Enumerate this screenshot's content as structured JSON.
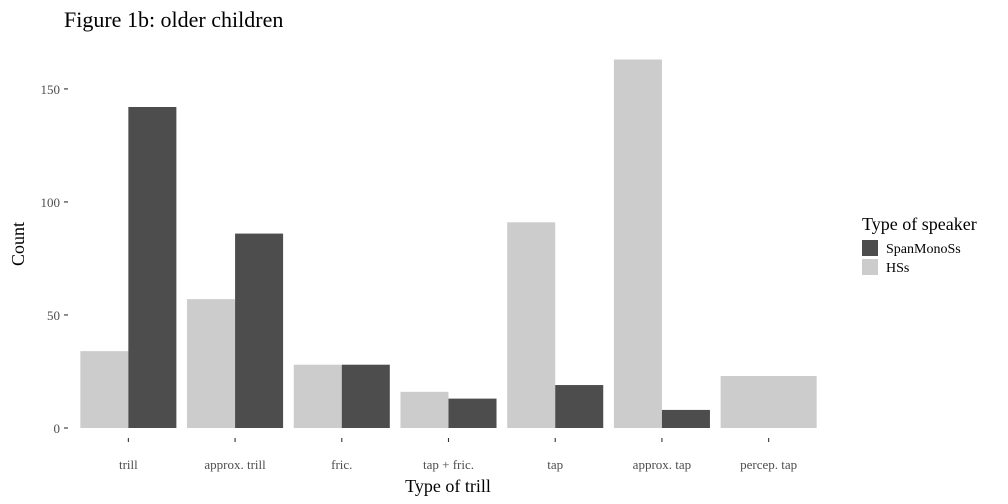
{
  "chart_data": {
    "type": "bar",
    "title": "Figure 1b: older children",
    "xlabel": "Type of trill",
    "ylabel": "Count",
    "categories": [
      "trill",
      "approx. trill",
      "fric.",
      "tap + fric.",
      "tap",
      "approx. tap",
      "percep. tap"
    ],
    "series": [
      {
        "name": "HSs",
        "color": "#cccccc",
        "values": [
          34,
          57,
          28,
          16,
          91,
          163,
          23
        ]
      },
      {
        "name": "SpanMonoSs",
        "color": "#4d4d4d",
        "values": [
          142,
          86,
          28,
          13,
          19,
          8,
          null
        ]
      }
    ],
    "ylim": [
      0,
      165
    ],
    "yticks": [
      0,
      50,
      100,
      150
    ],
    "grid": false,
    "legend": {
      "title": "Type of speaker",
      "position": "right",
      "order": [
        "SpanMonoSs",
        "HSs"
      ]
    }
  }
}
